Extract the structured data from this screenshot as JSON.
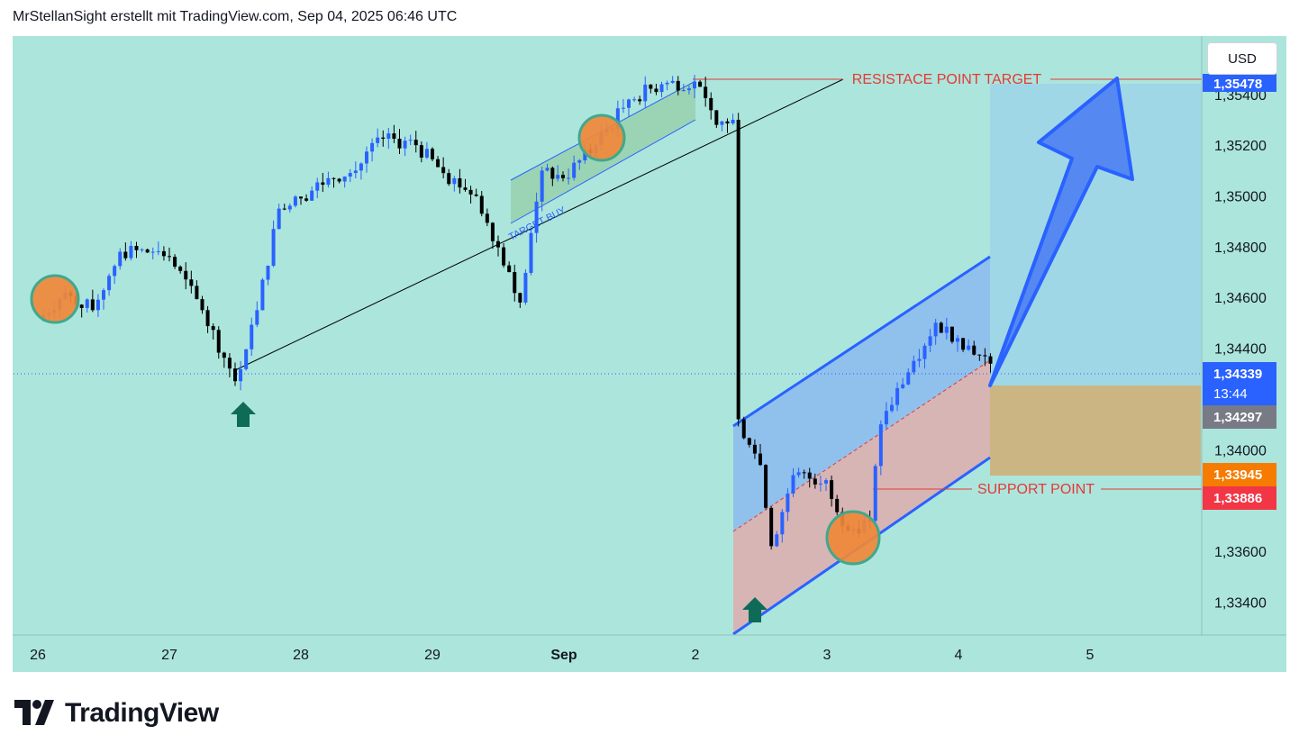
{
  "header": {
    "attribution": "MrStellanSight erstellt mit TradingView.com, Sep 04, 2025 06:46 UTC"
  },
  "currency_button": "USD",
  "brand": {
    "name": "TradingView"
  },
  "colors": {
    "background": "#ace5dc",
    "bull": "#2962ff",
    "bear": "#000000",
    "channel_fill": "#90c0ec",
    "channel_lower_fill": "#d7b5b5",
    "target_zone": "#a0d7e6",
    "stop_zone": "#cbb683",
    "arrow": "#4a7df2",
    "marker_orange": "#f0883a",
    "marker_green": "#0d6b57",
    "annotation_red": "#e53935"
  },
  "annotations": {
    "resistance": "RESISTACE  POINT  TARGET",
    "support": "SUPPORT  POINT",
    "target_buy": "TARGET  BUY"
  },
  "price_labels": {
    "target": "1,35478",
    "current": "1,34339",
    "countdown": "13:44",
    "entry": "1,34297",
    "orange": "1,33945",
    "support": "1,33886"
  },
  "chart_data": {
    "type": "candlestick",
    "title": "",
    "x_ticks": [
      "26",
      "27",
      "28",
      "29",
      "Sep",
      "2",
      "3",
      "4",
      "5"
    ],
    "y_ticks": [
      "1,33400",
      "1,33600",
      "1,33800",
      "1,34000",
      "1,34200",
      "1,34400",
      "1,34600",
      "1,34800",
      "1,35000",
      "1,35200",
      "1,35400"
    ],
    "y_range": [
      1.3327,
      1.3563
    ],
    "last_price": 1.34339,
    "levels": {
      "resistance": 1.35478,
      "support": 1.33886,
      "entry": 1.34297,
      "stop": 1.33945
    },
    "path_keypoints": [
      {
        "x": "Aug 26 00:00",
        "price": 1.3451
      },
      {
        "x": "Aug 26 05:00",
        "price": 1.3462
      },
      {
        "x": "Aug 26 10:00",
        "price": 1.3455
      },
      {
        "x": "Aug 26 15:00",
        "price": 1.3478
      },
      {
        "x": "Aug 26 21:00",
        "price": 1.3478
      },
      {
        "x": "Aug 27 00:00",
        "price": 1.3476
      },
      {
        "x": "Aug 27 06:00",
        "price": 1.3455
      },
      {
        "x": "Aug 27 11:00",
        "price": 1.3432
      },
      {
        "x": "Aug 27 12:00",
        "price": 1.3427
      },
      {
        "x": "Aug 27 16:00",
        "price": 1.3455
      },
      {
        "x": "Aug 27 20:00",
        "price": 1.3495
      },
      {
        "x": "Aug 28 00:00",
        "price": 1.3499
      },
      {
        "x": "Aug 28 05:00",
        "price": 1.3507
      },
      {
        "x": "Aug 28 10:00",
        "price": 1.351
      },
      {
        "x": "Aug 28 14:00",
        "price": 1.3523
      },
      {
        "x": "Aug 28 21:00",
        "price": 1.352
      },
      {
        "x": "Aug 29 02:00",
        "price": 1.3509
      },
      {
        "x": "Aug 29 08:00",
        "price": 1.35
      },
      {
        "x": "Aug 29 14:00",
        "price": 1.347
      },
      {
        "x": "Aug 29 16:00",
        "price": 1.3458
      },
      {
        "x": "Aug 29 20:00",
        "price": 1.351
      },
      {
        "x": "Sep 01 00:00",
        "price": 1.3507
      },
      {
        "x": "Sep 01 06:00",
        "price": 1.352
      },
      {
        "x": "Sep 01 12:00",
        "price": 1.3538
      },
      {
        "x": "Sep 01 18:00",
        "price": 1.3544
      },
      {
        "x": "Sep 02 00:00",
        "price": 1.3545
      },
      {
        "x": "Sep 02 04:00",
        "price": 1.3528
      },
      {
        "x": "Sep 02 07:00",
        "price": 1.353
      },
      {
        "x": "Sep 02 08:00",
        "price": 1.3412
      },
      {
        "x": "Sep 02 12:00",
        "price": 1.3394
      },
      {
        "x": "Sep 02 14:00",
        "price": 1.3362
      },
      {
        "x": "Sep 02 18:00",
        "price": 1.339
      },
      {
        "x": "Sep 03 00:00",
        "price": 1.3388
      },
      {
        "x": "Sep 03 04:00",
        "price": 1.3368
      },
      {
        "x": "Sep 03 08:00",
        "price": 1.3372
      },
      {
        "x": "Sep 03 10:00",
        "price": 1.341
      },
      {
        "x": "Sep 03 16:00",
        "price": 1.3435
      },
      {
        "x": "Sep 03 20:00",
        "price": 1.345
      },
      {
        "x": "Sep 04 00:00",
        "price": 1.3444
      },
      {
        "x": "Sep 04 06:00",
        "price": 1.34339
      }
    ]
  }
}
